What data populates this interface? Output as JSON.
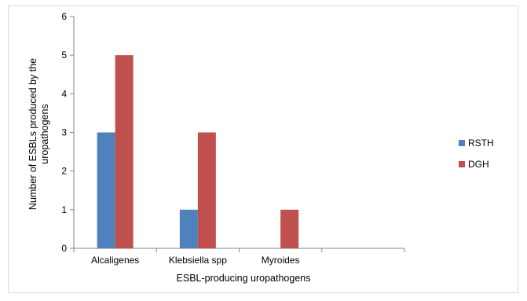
{
  "chart_data": {
    "type": "bar",
    "title": "",
    "xlabel": "ESBL-producing uropathogens",
    "ylabel_lines": [
      "Number of ESBLs produced by the",
      "uropathogens"
    ],
    "categories": [
      "Alcaligenes",
      "Klebsiella spp",
      "Myroides",
      ""
    ],
    "series": [
      {
        "name": "RSTH",
        "values": [
          3,
          1,
          0,
          0
        ],
        "color": "#4F81BD"
      },
      {
        "name": "DGH",
        "values": [
          5,
          3,
          1,
          0
        ],
        "color": "#C0504D"
      }
    ],
    "yticks": [
      0,
      1,
      2,
      3,
      4,
      5,
      6
    ],
    "ylim": [
      0,
      6
    ],
    "grid": false,
    "legend_position": "right"
  }
}
